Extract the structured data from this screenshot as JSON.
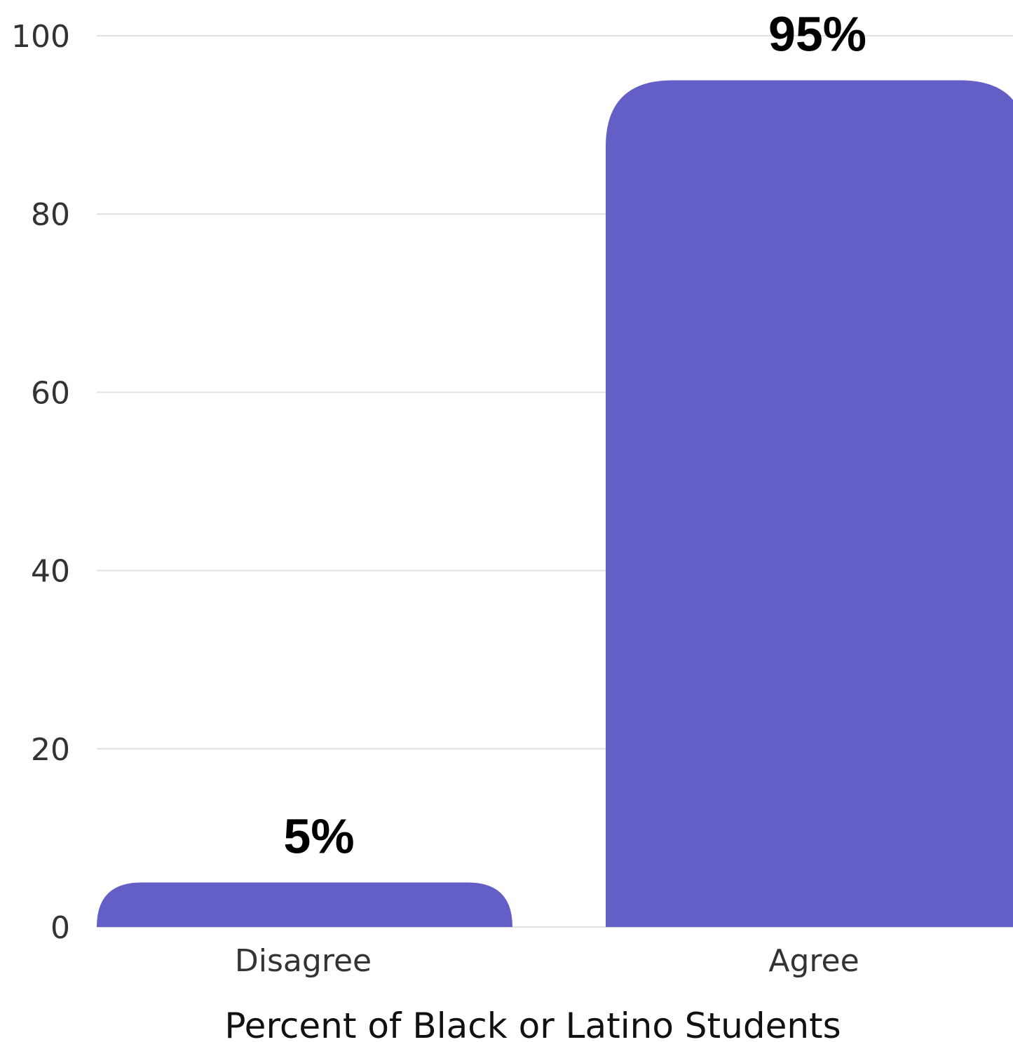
{
  "chart_data": {
    "type": "bar",
    "categories": [
      "Disagree",
      "Agree"
    ],
    "values": [
      5,
      95
    ],
    "data_labels": [
      "5%",
      "95%"
    ],
    "title": "",
    "xlabel": "Percent of Black or Latino Students",
    "ylabel": "",
    "ylim": [
      0,
      100
    ],
    "yticks": [
      0,
      20,
      40,
      60,
      80,
      100
    ],
    "grid": true,
    "legend": "none",
    "bar_color": "#635fc7"
  }
}
